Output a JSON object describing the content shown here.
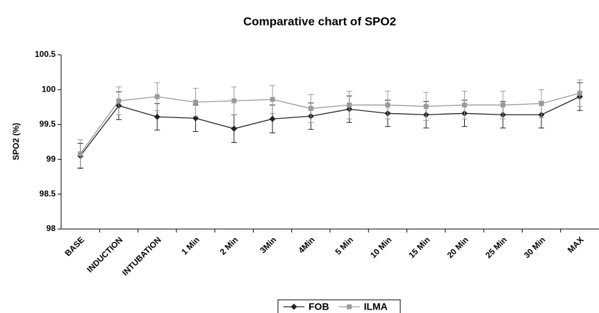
{
  "chart_data": {
    "type": "line",
    "title": "Comparative chart of SPO2",
    "y_label": "SPO2 (%)",
    "categories": [
      "BASE",
      "INDUCTION",
      "INTUBATION",
      "1 Min",
      "2 Min",
      "3Min",
      "4Min",
      "5 Min",
      "10 Min",
      "15 Min",
      "20 Min",
      "25 Min",
      "30 Min",
      "MAX"
    ],
    "series": [
      {
        "name": "FOB",
        "color": "#222222",
        "marker": "diamond",
        "values": [
          99.05,
          99.77,
          99.61,
          99.59,
          99.44,
          99.58,
          99.62,
          99.72,
          99.66,
          99.64,
          99.66,
          99.64,
          99.64,
          99.9
        ],
        "errors": [
          0.18,
          0.2,
          0.19,
          0.19,
          0.2,
          0.2,
          0.19,
          0.19,
          0.19,
          0.19,
          0.19,
          0.19,
          0.19,
          0.2
        ]
      },
      {
        "name": "ILMA",
        "color": "#999999",
        "marker": "square",
        "values": [
          99.08,
          99.84,
          99.9,
          99.82,
          99.84,
          99.86,
          99.73,
          99.78,
          99.78,
          99.76,
          99.78,
          99.78,
          99.8,
          99.95
        ],
        "errors": [
          0.2,
          0.2,
          0.2,
          0.2,
          0.2,
          0.2,
          0.2,
          0.2,
          0.2,
          0.2,
          0.2,
          0.2,
          0.2,
          0.19
        ]
      }
    ],
    "ylim": [
      98,
      100.5
    ],
    "yticks": [
      98,
      98.5,
      99,
      99.5,
      100,
      100.5
    ],
    "grid": false,
    "legend": "bottom"
  }
}
